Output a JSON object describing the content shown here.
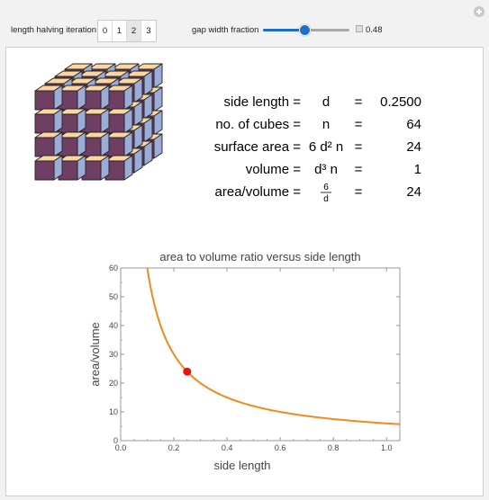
{
  "controls": {
    "iteration_label": "length halving iteration",
    "iteration_options": [
      "0",
      "1",
      "2",
      "3"
    ],
    "iteration_selected": "2",
    "gap_label": "gap width fraction",
    "gap_value": 0.48,
    "gap_value_text": "0.48",
    "gap_range": [
      0,
      1
    ]
  },
  "cubes": {
    "grid": 4,
    "top_color": "#fbd6a0",
    "side_color": "#9bacd8",
    "front_color": "#6e3f62",
    "edge_color": "#222222"
  },
  "formulas": [
    {
      "name": "side length =",
      "symbol": "d",
      "eq": "=",
      "value": "0.2500"
    },
    {
      "name": "no. of cubes =",
      "symbol": "n",
      "eq": "=",
      "value": "64"
    },
    {
      "name": "surface area =",
      "symbol": "6 d² n",
      "eq": "=",
      "value": "24"
    },
    {
      "name": "volume =",
      "symbol": "d³ n",
      "eq": "=",
      "value": "1"
    },
    {
      "name": "area/volume =",
      "symbol": "6/d",
      "eq": "=",
      "value": "24"
    }
  ],
  "chart_data": {
    "type": "line",
    "title": "area to volume ratio versus side length",
    "xlabel": "side length",
    "ylabel": "area/volume",
    "xlim": [
      0,
      1.05
    ],
    "ylim": [
      0,
      60
    ],
    "xticks": [
      0.0,
      0.2,
      0.4,
      0.6,
      0.8,
      1.0
    ],
    "xtick_labels": [
      "0.0",
      "0.2",
      "0.4",
      "0.6",
      "0.8",
      "1.0"
    ],
    "yticks": [
      0,
      10,
      20,
      30,
      40,
      50,
      60
    ],
    "ytick_labels": [
      "0",
      "10",
      "20",
      "30",
      "40",
      "50",
      "60"
    ],
    "series": [
      {
        "function": "6/x",
        "color": "#f08a1c"
      }
    ],
    "highlight_point": {
      "x": 0.25,
      "y": 24,
      "color": "#ee1111"
    }
  }
}
